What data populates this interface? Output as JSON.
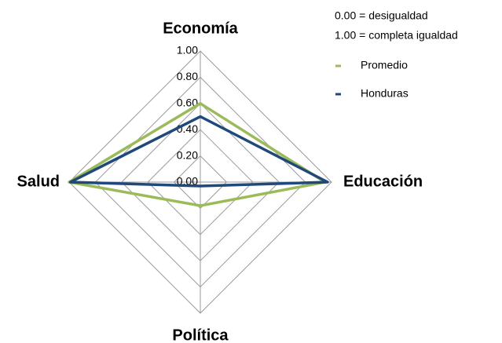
{
  "chart_data": {
    "type": "radar",
    "categories": [
      "Economía",
      "Educación",
      "Política",
      "Salud"
    ],
    "series": [
      {
        "name": "Promedio",
        "color": "#9bbb59",
        "values": [
          0.6,
          0.95,
          0.18,
          1.0
        ]
      },
      {
        "name": "Honduras",
        "color": "#1f497d",
        "values": [
          0.5,
          0.97,
          0.03,
          0.99
        ]
      }
    ],
    "ylim": [
      0,
      1
    ],
    "yticks": [
      {
        "value": 0,
        "label": "0.00"
      },
      {
        "value": 0.2,
        "label": "0.20"
      },
      {
        "value": 0.4,
        "label": "0.40"
      },
      {
        "value": 0.6,
        "label": "0.60"
      },
      {
        "value": 0.8,
        "label": "0.80"
      },
      {
        "value": 1,
        "label": "1.00"
      }
    ],
    "grid": true,
    "annotations": [
      "0.00 = desigualdad",
      "1.00 = completa igualdad"
    ],
    "legend": "upper right"
  }
}
